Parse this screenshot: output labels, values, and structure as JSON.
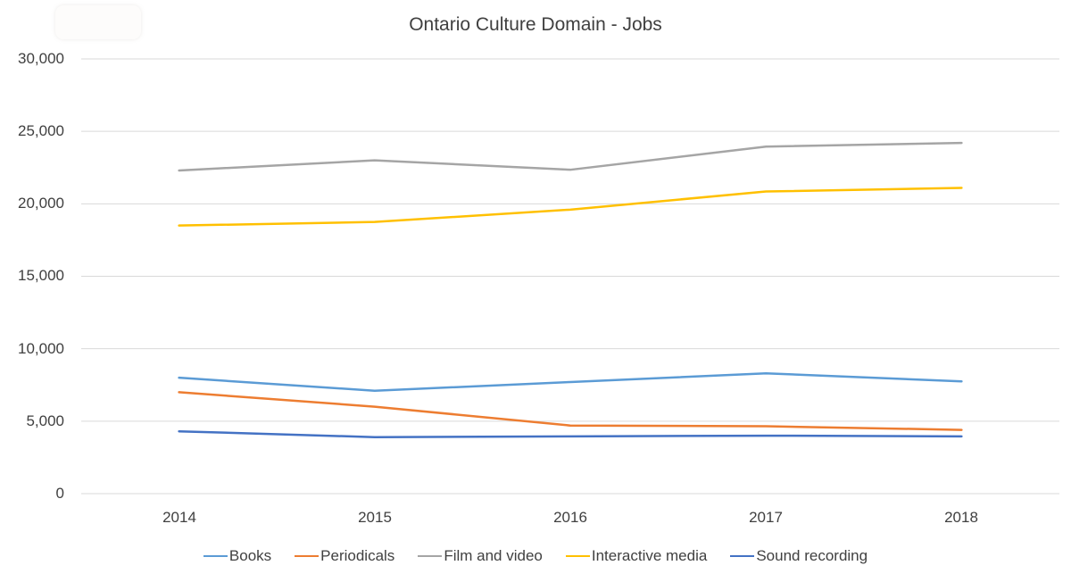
{
  "title": "Ontario Culture Domain - Jobs",
  "chart_data": {
    "type": "line",
    "title": "Ontario Culture Domain - Jobs",
    "categories": [
      "2014",
      "2015",
      "2016",
      "2017",
      "2018"
    ],
    "series": [
      {
        "name": "Books",
        "color": "#5B9BD5",
        "values": [
          8000,
          7100,
          7700,
          8300,
          7750
        ]
      },
      {
        "name": "Periodicals",
        "color": "#ED7D31",
        "values": [
          7000,
          6000,
          4700,
          4650,
          4400
        ]
      },
      {
        "name": "Film and video",
        "color": "#A5A5A5",
        "values": [
          22300,
          23000,
          22350,
          23950,
          24200
        ]
      },
      {
        "name": "Interactive media",
        "color": "#FFC000",
        "values": [
          18500,
          18750,
          19600,
          20850,
          21100
        ]
      },
      {
        "name": "Sound recording",
        "color": "#4472C4",
        "values": [
          4300,
          3900,
          3950,
          4000,
          3950
        ]
      }
    ],
    "ylim": [
      0,
      30000
    ],
    "y_ticks": [
      0,
      5000,
      10000,
      15000,
      20000,
      25000,
      30000
    ],
    "y_tick_labels": [
      "0",
      "5,000",
      "10,000",
      "15,000",
      "20,000",
      "25,000",
      "30,000"
    ],
    "xlabel": "",
    "ylabel": "",
    "grid": "horizontal",
    "legend_position": "bottom",
    "gridline_color": "#D9D9D9",
    "text_color": "#404040"
  }
}
